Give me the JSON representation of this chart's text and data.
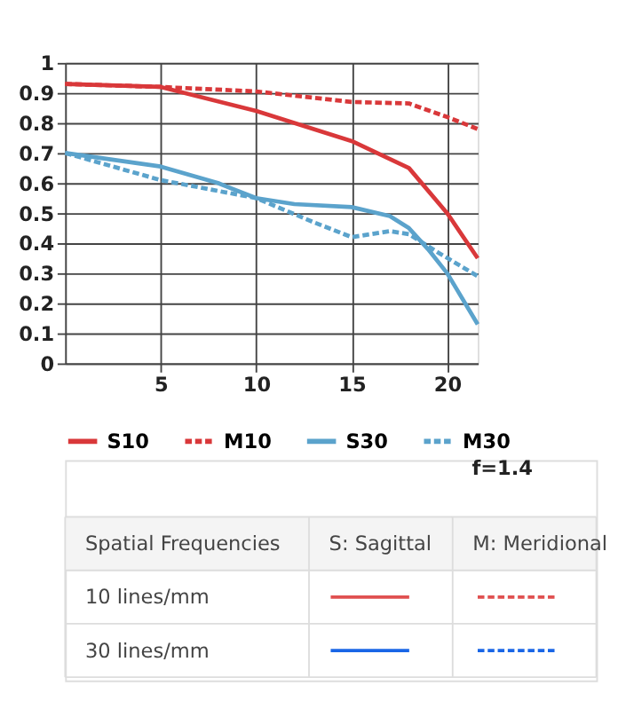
{
  "chart_data": {
    "type": "line",
    "xlim": [
      0,
      21.6
    ],
    "xticks": [
      5,
      10,
      15,
      20
    ],
    "ylim": [
      0,
      1
    ],
    "yticks": [
      0,
      0.1,
      0.2,
      0.3,
      0.4,
      0.5,
      0.6,
      0.7,
      0.8,
      0.9,
      1
    ],
    "grid": true,
    "legend": "bottom",
    "marker": "none",
    "series": [
      {
        "name": "S10",
        "color": "#d9383a",
        "line_style": "solid",
        "x": [
          0,
          5,
          10,
          15,
          18,
          20,
          21.6
        ],
        "values": [
          0.93,
          0.92,
          0.84,
          0.74,
          0.65,
          0.5,
          0.35
        ]
      },
      {
        "name": "M10",
        "color": "#d9383a",
        "line_style": "dashed",
        "x": [
          0,
          5,
          10,
          15,
          18,
          20,
          21.6
        ],
        "values": [
          0.93,
          0.92,
          0.905,
          0.87,
          0.865,
          0.82,
          0.78
        ]
      },
      {
        "name": "S30",
        "color": "#5ba3cc",
        "line_style": "solid",
        "x": [
          0,
          5,
          8,
          10,
          12,
          15,
          17,
          18,
          19,
          20,
          21.6
        ],
        "values": [
          0.7,
          0.655,
          0.6,
          0.55,
          0.53,
          0.52,
          0.49,
          0.45,
          0.38,
          0.3,
          0.13
        ]
      },
      {
        "name": "M30",
        "color": "#5ba3cc",
        "line_style": "dashed",
        "x": [
          0,
          5,
          10,
          13,
          15,
          17,
          18,
          19.5,
          21.6
        ],
        "values": [
          0.7,
          0.61,
          0.55,
          0.47,
          0.42,
          0.44,
          0.43,
          0.37,
          0.29
        ]
      }
    ],
    "annotations": [
      "f=1.4",
      "Spatial Frequencies",
      "S: Sagittal",
      "M: Meridional",
      "10 lines/mm",
      "30 lines/mm"
    ]
  }
}
